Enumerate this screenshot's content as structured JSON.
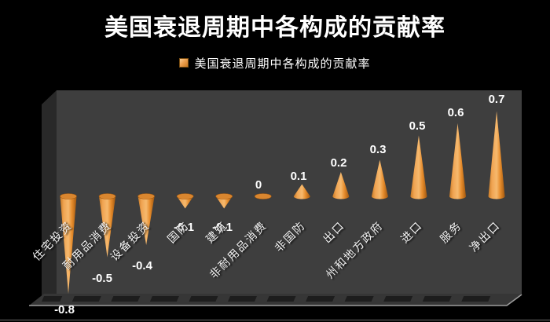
{
  "page": {
    "title": "美国衰退周期中各构成的贡献率"
  },
  "legend": {
    "label": "美国衰退周期中各构成的贡献率"
  },
  "colors": {
    "background": "#000000",
    "back_wall": "#3E3E3E",
    "side_wall": "#292929",
    "floor": "#363636",
    "floor_dash": "#1D1D1D",
    "floor_edge_line": "#9C9C9C",
    "bottom_border_line": "#7D7D7D",
    "cone_edge_dark": "#A2580F",
    "cone_mid": "#E68C2C",
    "cone_light": "#F6B96E",
    "cone_base_top": "#D9862F",
    "text": "#FFFFFF"
  },
  "chart_data": {
    "type": "bar",
    "subtype": "3d-cone",
    "title": "美国衰退周期中各构成的贡献率",
    "series_name": "美国衰退周期中各构成的贡献率",
    "categories": [
      "住宅投资",
      "耐用品消费",
      "设备投资",
      "国防",
      "建筑",
      "非耐用品消费",
      "非国防",
      "出口",
      "州和地方政府",
      "进口",
      "服务",
      "净出口"
    ],
    "values": [
      -0.8,
      -0.5,
      -0.4,
      -0.1,
      -0.1,
      0,
      0.1,
      0.2,
      0.3,
      0.5,
      0.6,
      0.7
    ],
    "value_labels": [
      "-0.8",
      "-0.5",
      "-0.4",
      "-0.1",
      "-0.1",
      "0",
      "0.1",
      "0.2",
      "0.3",
      "0.5",
      "0.6",
      "0.7"
    ],
    "xlabel": "",
    "ylabel": "",
    "ylim": [
      -0.8,
      0.7
    ],
    "grid": false,
    "legend_position": "top",
    "data_labels_shown": true
  }
}
